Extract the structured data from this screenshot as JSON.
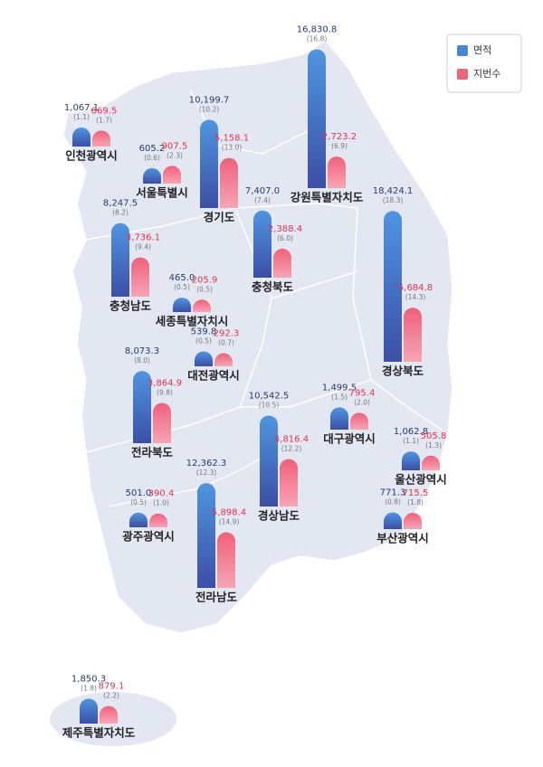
{
  "legend": [
    {
      "name": "면적",
      "color": "#4a86d4"
    },
    {
      "name": "지번수",
      "color": "#f0637c"
    }
  ],
  "regions": [
    {
      "name": "인천광역시",
      "area": 1067.1,
      "area_label": "1,067.1",
      "area_share": "(1.1)",
      "parcels": 669.5,
      "parcels_label": "669.5",
      "parcels_share": "(1.7)"
    },
    {
      "name": "서울특별시",
      "area": 605.2,
      "area_label": "605.2",
      "area_share": "(0.6)",
      "parcels": 907.5,
      "parcels_label": "907.5",
      "parcels_share": "(2.3)"
    },
    {
      "name": "경기도",
      "area": 10199.7,
      "area_label": "10,199.7",
      "area_share": "(10.2)",
      "parcels": 5158.1,
      "parcels_label": "5,158.1",
      "parcels_share": "(13.0)"
    },
    {
      "name": "강원특별자치도",
      "area": 16830.8,
      "area_label": "16,830.8",
      "area_share": "(16.8)",
      "parcels": 2723.2,
      "parcels_label": "2,723.2",
      "parcels_share": "(6.9)"
    },
    {
      "name": "충청남도",
      "area": 8247.5,
      "area_label": "8,247.5",
      "area_share": "(8.2)",
      "parcels": 3736.1,
      "parcels_label": "3,736.1",
      "parcels_share": "(9.4)"
    },
    {
      "name": "충청북도",
      "area": 7407.0,
      "area_label": "7,407.0",
      "area_share": "(7.4)",
      "parcels": 2388.4,
      "parcels_label": "2,388.4",
      "parcels_share": "(6.0)"
    },
    {
      "name": "세종특별자치시",
      "area": 465.0,
      "area_label": "465.0",
      "area_share": "(0.5)",
      "parcels": 205.9,
      "parcels_label": "205.9",
      "parcels_share": "(0.5)"
    },
    {
      "name": "대전광역시",
      "area": 539.8,
      "area_label": "539.8",
      "area_share": "(0.5)",
      "parcels": 292.3,
      "parcels_label": "292.3",
      "parcels_share": "(0.7)"
    },
    {
      "name": "경상북도",
      "area": 18424.1,
      "area_label": "18,424.1",
      "area_share": "(18.3)",
      "parcels": 5684.8,
      "parcels_label": "5,684.8",
      "parcels_share": "(14.3)"
    },
    {
      "name": "전라북도",
      "area": 8073.3,
      "area_label": "8,073.3",
      "area_share": "(8.0)",
      "parcels": 3864.9,
      "parcels_label": "3,864.9",
      "parcels_share": "(9.8)"
    },
    {
      "name": "대구광역시",
      "area": 1499.5,
      "area_label": "1,499.5",
      "area_share": "(1.5)",
      "parcels": 795.4,
      "parcels_label": "795.4",
      "parcels_share": "(2.0)"
    },
    {
      "name": "경상남도",
      "area": 10542.5,
      "area_label": "10,542.5",
      "area_share": "(10.5)",
      "parcels": 4816.4,
      "parcels_label": "4,816.4",
      "parcels_share": "(12.2)"
    },
    {
      "name": "울산광역시",
      "area": 1062.8,
      "area_label": "1,062.8",
      "area_share": "(1.1)",
      "parcels": 505.8,
      "parcels_label": "505.8",
      "parcels_share": "(1.3)"
    },
    {
      "name": "광주광역시",
      "area": 501.0,
      "area_label": "501.0",
      "area_share": "(0.5)",
      "parcels": 390.4,
      "parcels_label": "390.4",
      "parcels_share": "(1.0)"
    },
    {
      "name": "전라남도",
      "area": 12362.3,
      "area_label": "12,362.3",
      "area_share": "(12.3)",
      "parcels": 5898.4,
      "parcels_label": "5,898.4",
      "parcels_share": "(14.9)"
    },
    {
      "name": "부산광역시",
      "area": 771.3,
      "area_label": "771.3",
      "area_share": "(0.8)",
      "parcels": 715.5,
      "parcels_label": "715.5",
      "parcels_share": "(1.8)"
    },
    {
      "name": "제주특별자치도",
      "area": 1850.3,
      "area_label": "1,850.3",
      "area_share": "(1.8)",
      "parcels": 879.1,
      "parcels_label": "879.1",
      "parcels_share": "(2.2)"
    }
  ]
}
